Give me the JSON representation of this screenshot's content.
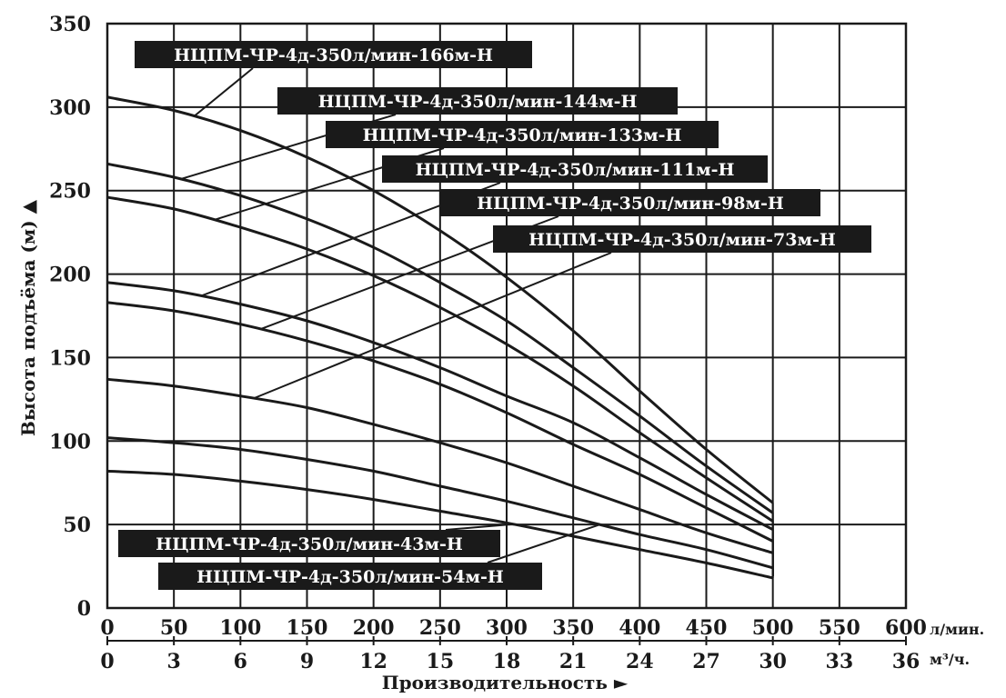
{
  "chart_data": {
    "type": "line",
    "ylabel": "Высота подъёма (м) ▲",
    "xlabel": "Производительность ►",
    "x_unit_primary": "л/мин.",
    "x_unit_secondary": "м³/ч.",
    "xlim": [
      0,
      600
    ],
    "ylim": [
      0,
      350
    ],
    "x_ticks_lpm": [
      0,
      50,
      100,
      150,
      200,
      250,
      300,
      350,
      400,
      450,
      500,
      550,
      600
    ],
    "x_ticks_m3h": [
      0,
      3,
      6,
      9,
      12,
      15,
      18,
      21,
      24,
      27,
      30,
      33,
      36
    ],
    "y_ticks": [
      0,
      50,
      100,
      150,
      200,
      250,
      300,
      350
    ],
    "grid": true,
    "x": [
      0,
      50,
      100,
      150,
      200,
      250,
      300,
      350,
      400,
      450,
      500
    ],
    "series": [
      {
        "name": "НЦПМ-ЧР-4д-350л/мин-166м-Н",
        "values": [
          306,
          298,
          286,
          270,
          250,
          226,
          198,
          166,
          130,
          95,
          63
        ]
      },
      {
        "name": "НЦПМ-ЧР-4д-350л/мин-144м-Н",
        "values": [
          266,
          258,
          247,
          233,
          216,
          195,
          172,
          144,
          115,
          85,
          57
        ]
      },
      {
        "name": "НЦПМ-ЧР-4д-350л/мин-133м-Н",
        "values": [
          246,
          239,
          228,
          215,
          199,
          180,
          158,
          133,
          105,
          78,
          52
        ]
      },
      {
        "name": "НЦПМ-ЧР-4д-350л/мин-111м-Н",
        "values": [
          195,
          190,
          182,
          172,
          159,
          144,
          127,
          111,
          90,
          68,
          47
        ]
      },
      {
        "name": "НЦПМ-ЧР-4д-350л/мин-98м-Н",
        "values": [
          183,
          178,
          170,
          160,
          148,
          134,
          117,
          98,
          80,
          60,
          40
        ]
      },
      {
        "name": "НЦПМ-ЧР-4д-350л/мин-73м-Н",
        "values": [
          137,
          133,
          127,
          120,
          110,
          99,
          87,
          73,
          59,
          45,
          33
        ]
      },
      {
        "name": "НЦПМ-ЧР-4д-350л/мин-54м-Н",
        "values": [
          102,
          99,
          95,
          89,
          82,
          73,
          64,
          54,
          44,
          35,
          24
        ]
      },
      {
        "name": "НЦПМ-ЧР-4д-350л/мин-43м-Н",
        "values": [
          82,
          80,
          76,
          71,
          65,
          58,
          51,
          43,
          35,
          27,
          18
        ]
      }
    ],
    "annotations": [
      {
        "text": "НЦПМ-ЧР-4д-350л/мин-166м-Н",
        "series": "НЦПМ-ЧР-4д-350л/мин-166м-Н",
        "at_x": 65
      },
      {
        "text": "НЦПМ-ЧР-4д-350л/мин-144м-Н",
        "series": "НЦПМ-ЧР-4д-350л/мин-144м-Н",
        "at_x": 55
      },
      {
        "text": "НЦПМ-ЧР-4д-350л/мин-133м-Н",
        "series": "НЦПМ-ЧР-4д-350л/мин-133м-Н",
        "at_x": 80
      },
      {
        "text": "НЦПМ-ЧР-4д-350л/мин-111м-Н",
        "series": "НЦПМ-ЧР-4д-350л/мин-111м-Н",
        "at_x": 70
      },
      {
        "text": "НЦПМ-ЧР-4д-350л/мин-98м-Н",
        "series": "НЦПМ-ЧР-4д-350л/мин-98м-Н",
        "at_x": 115
      },
      {
        "text": "НЦПМ-ЧР-4д-350л/мин-73м-Н",
        "series": "НЦПМ-ЧР-4д-350л/мин-73м-Н",
        "at_x": 110
      },
      {
        "text": "НЦПМ-ЧР-4д-350л/мин-43м-Н",
        "series": "НЦПМ-ЧР-4д-350л/мин-43м-Н",
        "at_x": 305
      },
      {
        "text": "НЦПМ-ЧР-4д-350л/мин-54м-Н",
        "series": "НЦПМ-ЧР-4д-350л/мин-54м-Н",
        "at_x": 370
      }
    ]
  }
}
